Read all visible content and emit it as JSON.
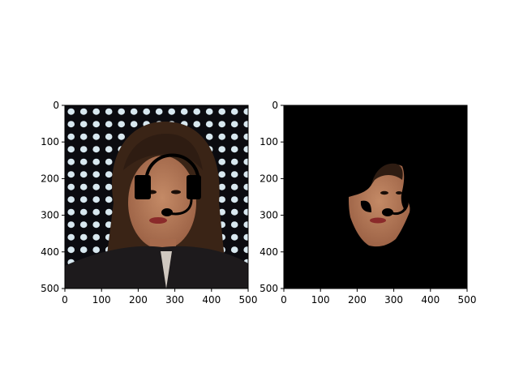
{
  "figure": {
    "panels": [
      {
        "id": "left",
        "content": "portrait-with-headset-overlay",
        "x_ticks": [
          "0",
          "100",
          "200",
          "300",
          "400",
          "500"
        ],
        "y_ticks": [
          "0",
          "100",
          "200",
          "300",
          "400",
          "500"
        ]
      },
      {
        "id": "right",
        "content": "masked-face-on-black",
        "x_ticks": [
          "0",
          "100",
          "200",
          "300",
          "400",
          "500"
        ],
        "y_ticks": [
          "0",
          "100",
          "200",
          "300",
          "400",
          "500"
        ]
      }
    ]
  },
  "colors": {
    "background_dark": "#0b0b10",
    "light_dot": "#d8e8f0",
    "hair": "#3a2416",
    "skin": "#b47a5a",
    "jacket": "#1d1a1c",
    "headset": "#000000",
    "mask_bg": "#000000",
    "lips": "#8a2a2a"
  }
}
